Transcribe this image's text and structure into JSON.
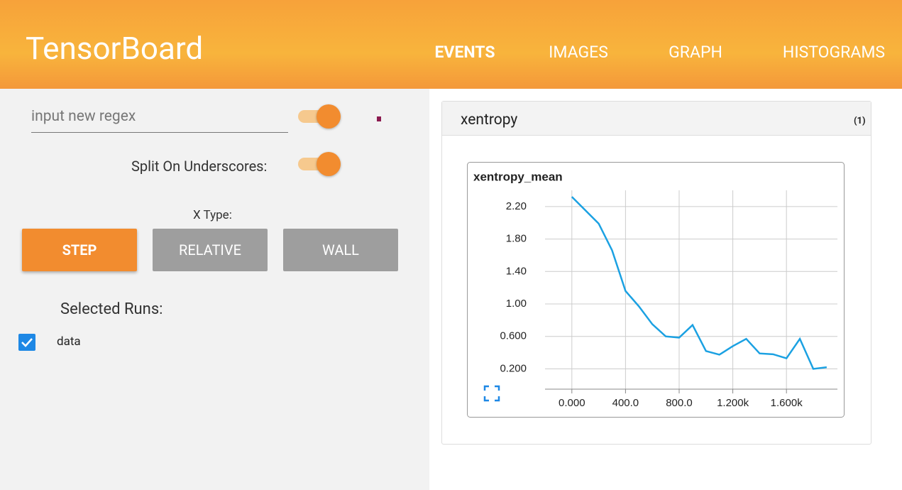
{
  "header": {
    "title": "TensorBoard",
    "tabs": [
      "EVENTS",
      "IMAGES",
      "GRAPH",
      "HISTOGRAMS"
    ]
  },
  "sidebar": {
    "regex_placeholder": "input new regex",
    "split_label": "Split On Underscores:",
    "x_type_label": "X Type:",
    "x_type_options": [
      "STEP",
      "RELATIVE",
      "WALL"
    ],
    "runs_label": "Selected Runs:",
    "runs": [
      "data"
    ]
  },
  "card": {
    "title": "xentropy",
    "count": "(1)"
  },
  "chart_data": {
    "type": "line",
    "title": "xentropy_mean",
    "x": [
      0,
      200,
      300,
      400,
      500,
      600,
      700,
      800,
      900,
      1000,
      1100,
      1200,
      1300,
      1400,
      1500,
      1600,
      1700,
      1800,
      1900
    ],
    "values": [
      2.32,
      1.99,
      1.66,
      1.16,
      0.97,
      0.75,
      0.6,
      0.585,
      0.74,
      0.42,
      0.375,
      0.48,
      0.57,
      0.39,
      0.38,
      0.33,
      0.57,
      0.2,
      0.22
    ],
    "color": "#1ba1e2",
    "xlim": [
      -200,
      1980
    ],
    "ylim": [
      -0.05,
      2.4
    ],
    "xticks": [
      {
        "value": 0,
        "label": "0.000"
      },
      {
        "value": 400,
        "label": "400.0"
      },
      {
        "value": 800,
        "label": "800.0"
      },
      {
        "value": 1200,
        "label": "1.200k"
      },
      {
        "value": 1600,
        "label": "1.600k"
      }
    ],
    "yticks": [
      {
        "value": 0.2,
        "label": "0.200"
      },
      {
        "value": 0.6,
        "label": "0.600"
      },
      {
        "value": 1.0,
        "label": "1.00"
      },
      {
        "value": 1.4,
        "label": "1.40"
      },
      {
        "value": 1.8,
        "label": "1.80"
      },
      {
        "value": 2.2,
        "label": "2.20"
      }
    ],
    "grid": true
  }
}
